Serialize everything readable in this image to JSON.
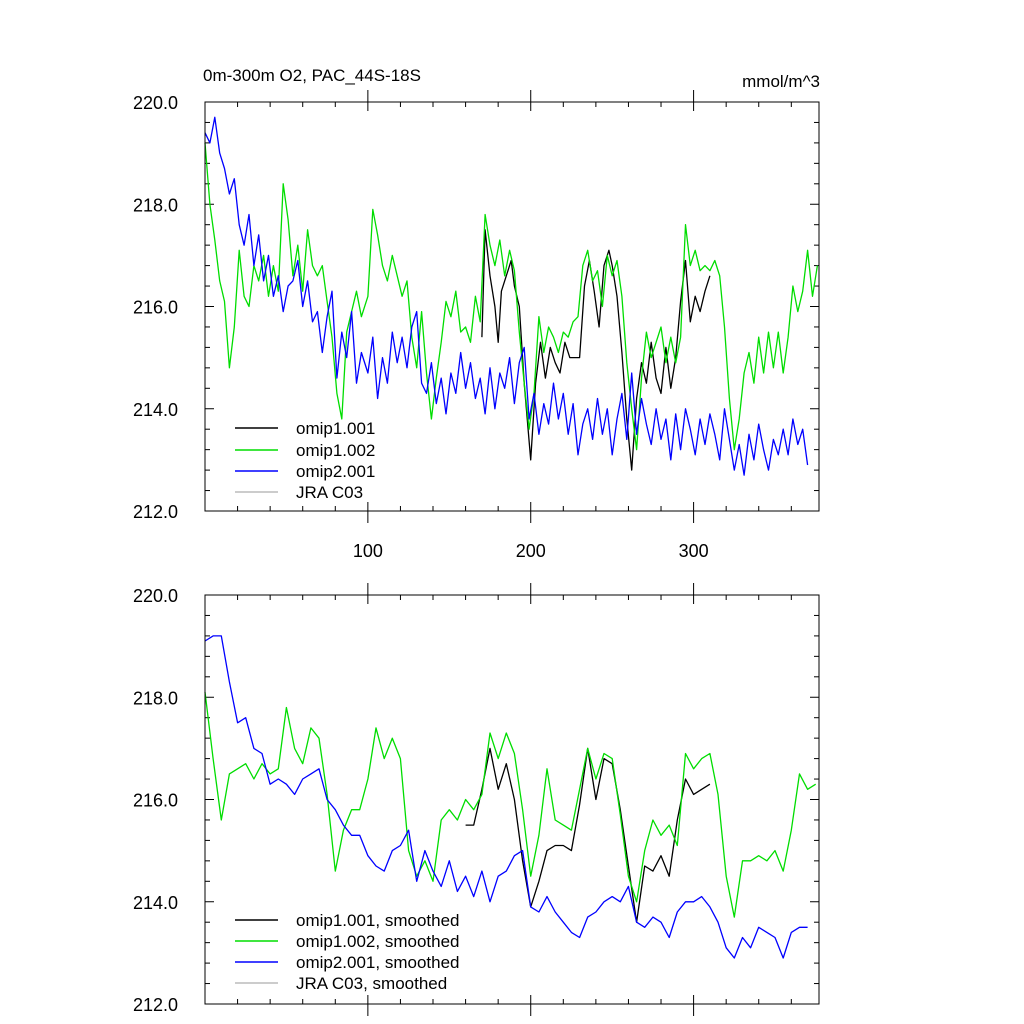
{
  "chart_data": [
    {
      "type": "line",
      "title": "0m-300m O2, PAC_44S-18S",
      "units": "mmol/m^3",
      "xlim": [
        0,
        377
      ],
      "ylim": [
        212,
        220
      ],
      "xticks": [
        100,
        200,
        300
      ],
      "xtick_labels": [
        "100",
        "200",
        "300"
      ],
      "yticks": [
        212,
        214,
        216,
        218,
        220
      ],
      "ytick_labels": [
        "212.0",
        "214.0",
        "216.0",
        "218.0",
        "220.0"
      ],
      "legend_position": "bottom-left",
      "series": [
        {
          "name": "omip1.001",
          "color": "#000000",
          "x": [
            170,
            172,
            175,
            178,
            180,
            182,
            185,
            188,
            190,
            193,
            196,
            200,
            203,
            206,
            209,
            212,
            215,
            218,
            221,
            224,
            227,
            230,
            233,
            236,
            239,
            242,
            245,
            248,
            250,
            253,
            256,
            259,
            262,
            265,
            268,
            271,
            274,
            277,
            280,
            283,
            286,
            289,
            292,
            295,
            298,
            301,
            304,
            307,
            310
          ],
          "y": [
            215.4,
            217.5,
            216.6,
            216.0,
            215.3,
            216.3,
            216.6,
            216.9,
            216.4,
            216.0,
            214.5,
            213.0,
            214.5,
            215.3,
            214.6,
            215.2,
            214.9,
            214.7,
            215.3,
            215.0,
            215.0,
            215.0,
            216.4,
            216.9,
            216.3,
            215.6,
            216.8,
            217.1,
            216.8,
            216.2,
            215.1,
            213.8,
            212.8,
            214.2,
            214.9,
            214.5,
            215.3,
            214.6,
            214.3,
            215.2,
            214.4,
            215.0,
            216.1,
            216.9,
            215.7,
            216.2,
            215.9,
            216.3,
            216.6
          ]
        },
        {
          "name": "omip1.002",
          "color": "#00dd00",
          "x": [
            0,
            3,
            6,
            9,
            12,
            15,
            18,
            21,
            24,
            27,
            30,
            33,
            36,
            39,
            42,
            45,
            48,
            51,
            54,
            57,
            60,
            63,
            66,
            69,
            72,
            75,
            78,
            81,
            84,
            87,
            90,
            93,
            96,
            100,
            103,
            106,
            109,
            112,
            115,
            118,
            121,
            124,
            127,
            130,
            133,
            136,
            139,
            142,
            145,
            148,
            151,
            154,
            157,
            160,
            163,
            166,
            169,
            172,
            175,
            178,
            181,
            184,
            187,
            190,
            193,
            196,
            199,
            202,
            205,
            208,
            211,
            214,
            217,
            220,
            223,
            226,
            229,
            232,
            235,
            238,
            241,
            244,
            247,
            250,
            253,
            256,
            259,
            262,
            265,
            268,
            271,
            274,
            277,
            280,
            283,
            286,
            289,
            292,
            295,
            298,
            301,
            304,
            307,
            310,
            313,
            316,
            319,
            322,
            325,
            328,
            331,
            334,
            337,
            340,
            343,
            346,
            349,
            352,
            355,
            358,
            361,
            364,
            367,
            370,
            373,
            376
          ],
          "y": [
            219.2,
            218.0,
            217.3,
            216.5,
            216.1,
            214.8,
            215.6,
            217.1,
            216.2,
            216.0,
            216.8,
            216.5,
            217.0,
            216.2,
            216.8,
            216.3,
            218.4,
            217.7,
            216.6,
            217.2,
            216.3,
            217.5,
            216.8,
            216.6,
            216.8,
            216.1,
            215.4,
            214.3,
            213.8,
            215.5,
            215.9,
            216.3,
            215.8,
            216.2,
            217.9,
            217.4,
            216.8,
            216.5,
            217.0,
            216.6,
            216.2,
            216.5,
            215.4,
            214.8,
            215.9,
            214.7,
            213.8,
            214.6,
            215.3,
            216.1,
            215.8,
            216.3,
            215.5,
            215.6,
            215.3,
            216.2,
            215.7,
            217.8,
            217.2,
            216.8,
            217.3,
            216.6,
            217.1,
            216.7,
            215.5,
            214.5,
            213.6,
            214.3,
            215.8,
            215.1,
            215.6,
            215.4,
            215.1,
            215.5,
            215.4,
            215.7,
            215.8,
            216.8,
            217.1,
            216.5,
            216.7,
            216.0,
            217.0,
            216.6,
            216.9,
            216.2,
            214.9,
            214.0,
            213.2,
            214.6,
            215.5,
            215.0,
            215.3,
            215.6,
            214.9,
            215.4,
            214.9,
            215.4,
            217.6,
            216.8,
            217.1,
            216.7,
            216.8,
            216.7,
            216.9,
            216.6,
            215.6,
            214.2,
            213.2,
            213.8,
            214.7,
            215.1,
            214.5,
            215.4,
            214.7,
            215.5,
            214.8,
            215.5,
            214.7,
            215.4,
            216.4,
            215.9,
            216.3,
            217.1,
            216.2,
            216.8
          ]
        },
        {
          "name": "omip2.001",
          "color": "#0000ff",
          "x": [
            0,
            3,
            6,
            9,
            12,
            15,
            18,
            21,
            24,
            27,
            30,
            33,
            36,
            39,
            42,
            45,
            48,
            51,
            54,
            57,
            60,
            63,
            66,
            69,
            72,
            75,
            78,
            81,
            84,
            87,
            90,
            93,
            96,
            100,
            103,
            106,
            109,
            112,
            115,
            118,
            121,
            124,
            127,
            130,
            133,
            136,
            139,
            142,
            145,
            148,
            151,
            154,
            157,
            160,
            163,
            166,
            169,
            172,
            175,
            178,
            181,
            184,
            187,
            190,
            193,
            196,
            199,
            202,
            205,
            208,
            211,
            214,
            217,
            220,
            223,
            226,
            229,
            232,
            235,
            238,
            241,
            244,
            247,
            250,
            253,
            256,
            259,
            262,
            265,
            268,
            271,
            274,
            277,
            280,
            283,
            286,
            289,
            292,
            295,
            298,
            301,
            304,
            307,
            310,
            313,
            316,
            319,
            322,
            325,
            328,
            331,
            334,
            337,
            340,
            343,
            346,
            349,
            352,
            355,
            358,
            361,
            364,
            367,
            370
          ],
          "y": [
            219.4,
            219.2,
            219.7,
            219.0,
            218.7,
            218.2,
            218.5,
            217.6,
            217.2,
            217.8,
            216.8,
            217.4,
            216.5,
            217.0,
            216.2,
            216.6,
            215.9,
            216.4,
            216.5,
            216.9,
            216.0,
            216.5,
            215.7,
            215.9,
            215.1,
            215.8,
            216.3,
            214.6,
            215.5,
            215.0,
            215.9,
            214.5,
            215.1,
            214.7,
            215.4,
            214.2,
            215.0,
            214.5,
            215.5,
            214.9,
            215.4,
            214.8,
            215.6,
            215.9,
            214.5,
            214.3,
            214.9,
            214.1,
            214.6,
            213.9,
            214.7,
            214.3,
            215.1,
            214.4,
            214.9,
            214.2,
            214.6,
            213.9,
            214.8,
            214.0,
            214.7,
            214.4,
            215.0,
            214.1,
            214.9,
            215.2,
            213.8,
            214.3,
            213.5,
            214.1,
            213.7,
            214.5,
            213.8,
            214.3,
            213.5,
            214.1,
            213.1,
            213.7,
            214.0,
            213.4,
            214.2,
            213.5,
            214.0,
            213.1,
            213.8,
            214.3,
            213.4,
            214.7,
            213.5,
            214.2,
            213.7,
            213.3,
            214.0,
            213.4,
            213.8,
            213.0,
            213.9,
            213.2,
            214.0,
            213.6,
            213.1,
            213.8,
            213.3,
            213.9,
            213.5,
            213.0,
            214.0,
            213.4,
            212.8,
            213.3,
            212.7,
            213.5,
            213.0,
            213.7,
            213.2,
            212.8,
            213.4,
            213.1,
            213.6,
            213.1,
            213.8,
            213.3,
            213.6,
            212.9
          ]
        },
        {
          "name": "JRA C03",
          "color": "#bbbbbb",
          "x": [],
          "y": []
        }
      ]
    },
    {
      "type": "line",
      "title": "",
      "xlim": [
        0,
        377
      ],
      "ylim": [
        212,
        220
      ],
      "xticks": [
        100,
        200,
        300
      ],
      "xtick_labels": [
        "",
        "",
        ""
      ],
      "yticks": [
        212,
        214,
        216,
        218,
        220
      ],
      "ytick_labels": [
        "212.0",
        "214.0",
        "216.0",
        "218.0",
        "220.0"
      ],
      "legend_position": "bottom-left",
      "series": [
        {
          "name": "omip1.001, smoothed",
          "color": "#000000",
          "x": [
            160,
            165,
            170,
            175,
            180,
            185,
            190,
            195,
            200,
            205,
            210,
            215,
            220,
            225,
            230,
            235,
            240,
            245,
            250,
            255,
            260,
            265,
            270,
            275,
            280,
            285,
            290,
            295,
            300,
            305,
            310
          ],
          "y": [
            215.5,
            215.5,
            216.2,
            217.0,
            216.2,
            216.7,
            216.0,
            214.8,
            213.9,
            214.4,
            215.0,
            215.1,
            215.1,
            215.0,
            215.9,
            217.0,
            216.0,
            216.8,
            216.7,
            215.8,
            214.7,
            213.6,
            214.7,
            214.6,
            214.9,
            214.5,
            215.6,
            216.4,
            216.1,
            216.2,
            216.3
          ]
        },
        {
          "name": "omip1.002, smoothed",
          "color": "#00dd00",
          "x": [
            0,
            5,
            10,
            15,
            20,
            25,
            30,
            35,
            40,
            45,
            50,
            55,
            60,
            65,
            70,
            75,
            80,
            85,
            90,
            95,
            100,
            105,
            110,
            115,
            120,
            125,
            130,
            135,
            140,
            145,
            150,
            155,
            160,
            165,
            170,
            175,
            180,
            185,
            190,
            195,
            200,
            205,
            210,
            215,
            220,
            225,
            230,
            235,
            240,
            245,
            250,
            255,
            260,
            265,
            270,
            275,
            280,
            285,
            290,
            295,
            300,
            305,
            310,
            315,
            320,
            325,
            330,
            335,
            340,
            345,
            350,
            355,
            360,
            365,
            370,
            375
          ],
          "y": [
            218.1,
            216.8,
            215.6,
            216.5,
            216.6,
            216.7,
            216.4,
            216.7,
            216.5,
            216.6,
            217.8,
            217.0,
            216.7,
            217.4,
            217.2,
            216.1,
            214.6,
            215.4,
            215.8,
            215.8,
            216.4,
            217.4,
            216.8,
            217.2,
            216.8,
            215.0,
            214.5,
            214.8,
            214.4,
            215.6,
            215.8,
            215.6,
            216.0,
            215.8,
            216.1,
            217.3,
            216.8,
            217.3,
            216.9,
            215.8,
            214.5,
            215.3,
            216.6,
            215.6,
            215.5,
            215.4,
            216.2,
            217.0,
            216.4,
            216.9,
            216.8,
            215.7,
            214.5,
            214.0,
            215.0,
            215.6,
            215.3,
            215.5,
            215.1,
            216.9,
            216.6,
            216.8,
            216.9,
            216.1,
            214.5,
            213.7,
            214.8,
            214.8,
            214.9,
            214.8,
            215.0,
            214.6,
            215.4,
            216.5,
            216.2,
            216.3
          ]
        },
        {
          "name": "omip2.001, smoothed",
          "color": "#0000ff",
          "x": [
            0,
            5,
            10,
            15,
            20,
            25,
            30,
            35,
            40,
            45,
            50,
            55,
            60,
            65,
            70,
            75,
            80,
            85,
            90,
            95,
            100,
            105,
            110,
            115,
            120,
            125,
            130,
            135,
            140,
            145,
            150,
            155,
            160,
            165,
            170,
            175,
            180,
            185,
            190,
            195,
            200,
            205,
            210,
            215,
            220,
            225,
            230,
            235,
            240,
            245,
            250,
            255,
            260,
            265,
            270,
            275,
            280,
            285,
            290,
            295,
            300,
            305,
            310,
            315,
            320,
            325,
            330,
            335,
            340,
            345,
            350,
            355,
            360,
            365,
            370
          ],
          "y": [
            219.1,
            219.2,
            219.2,
            218.3,
            217.5,
            217.6,
            217.0,
            216.9,
            216.3,
            216.4,
            216.3,
            216.1,
            216.4,
            216.5,
            216.6,
            216.0,
            215.8,
            215.5,
            215.3,
            215.3,
            214.9,
            214.7,
            214.6,
            215.0,
            215.1,
            215.4,
            214.4,
            215.0,
            214.6,
            214.3,
            214.8,
            214.2,
            214.5,
            214.1,
            214.6,
            214.0,
            214.5,
            214.6,
            214.9,
            215.0,
            213.9,
            213.8,
            214.1,
            213.8,
            213.6,
            213.4,
            213.3,
            213.7,
            213.8,
            214.0,
            214.1,
            214.0,
            214.3,
            213.6,
            213.5,
            213.7,
            213.6,
            213.3,
            213.8,
            214.0,
            214.0,
            214.1,
            213.9,
            213.6,
            213.1,
            212.9,
            213.3,
            213.1,
            213.5,
            213.4,
            213.3,
            212.9,
            213.4,
            213.5,
            213.5
          ]
        },
        {
          "name": "JRA C03, smoothed",
          "color": "#bbbbbb",
          "x": [],
          "y": []
        }
      ]
    }
  ]
}
